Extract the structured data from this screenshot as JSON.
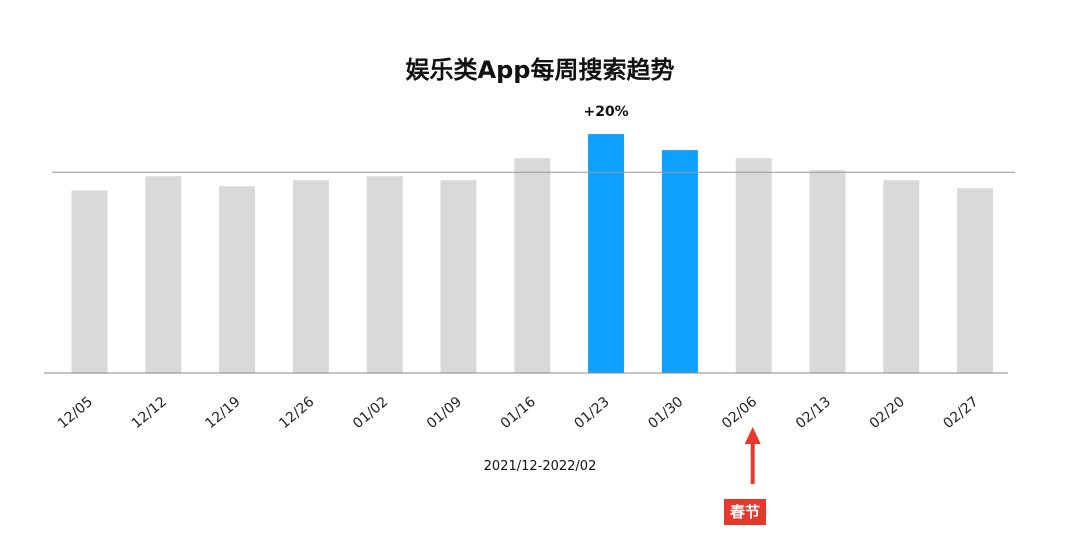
{
  "chart_data": {
    "type": "bar",
    "title": "娱乐类App每周搜索趋势",
    "categories": [
      "12/05",
      "12/12",
      "12/19",
      "12/26",
      "01/02",
      "01/09",
      "01/16",
      "01/23",
      "01/30",
      "02/06",
      "02/13",
      "02/20",
      "02/27"
    ],
    "values": [
      91,
      98,
      93,
      96,
      98,
      96,
      107,
      119,
      111,
      107,
      101,
      96,
      92
    ],
    "reference_line": 100,
    "highlight": [
      "01/23",
      "01/30"
    ],
    "xlabel": "2021/12-2022/02",
    "ylim": [
      0,
      125
    ],
    "grid": false,
    "colors": {
      "default": "#d9d9d9",
      "highlight": "#0ea0ff",
      "event": "#e53a2b",
      "reference": "#999999"
    },
    "annotations": [
      {
        "category": "01/23",
        "text": "+20%"
      },
      {
        "category": "02/06",
        "text": "春节"
      }
    ]
  }
}
